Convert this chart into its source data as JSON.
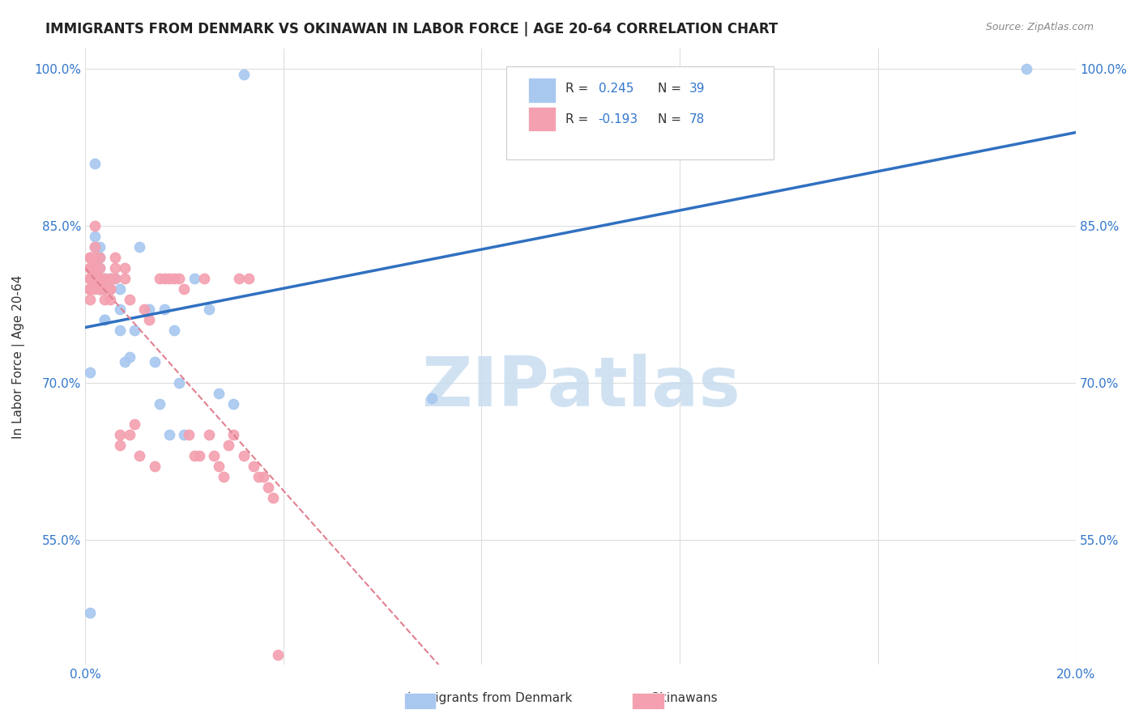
{
  "title": "IMMIGRANTS FROM DENMARK VS OKINAWAN IN LABOR FORCE | AGE 20-64 CORRELATION CHART",
  "source": "Source: ZipAtlas.com",
  "xlabel": "",
  "ylabel": "In Labor Force | Age 20-64",
  "xlim": [
    0.0,
    0.2
  ],
  "ylim": [
    0.43,
    1.02
  ],
  "yticks": [
    0.55,
    0.7,
    0.85,
    1.0
  ],
  "ytick_labels": [
    "55.0%",
    "70.0%",
    "85.0%",
    "100.0%"
  ],
  "xticks": [
    0.0,
    0.04,
    0.08,
    0.12,
    0.16,
    0.2
  ],
  "xtick_labels": [
    "0.0%",
    "",
    "",
    "",
    "",
    "20.0%"
  ],
  "denmark_R": 0.245,
  "denmark_N": 39,
  "okinawa_R": -0.193,
  "okinawa_N": 78,
  "denmark_color": "#a8c8f0",
  "okinawa_color": "#f4a0b0",
  "denmark_line_color": "#3070c0",
  "okinawa_line_color": "#e08090",
  "background_color": "#ffffff",
  "grid_color": "#dddddd",
  "watermark": "ZIPatlas",
  "watermark_color": "#c8ddf0",
  "legend_R_color": "#333333",
  "legend_N_color": "#3377cc",
  "denmark_x": [
    0.001,
    0.001,
    0.002,
    0.002,
    0.002,
    0.002,
    0.003,
    0.003,
    0.003,
    0.003,
    0.004,
    0.004,
    0.004,
    0.004,
    0.005,
    0.005,
    0.006,
    0.007,
    0.007,
    0.007,
    0.008,
    0.009,
    0.01,
    0.011,
    0.013,
    0.014,
    0.015,
    0.016,
    0.017,
    0.018,
    0.019,
    0.02,
    0.022,
    0.025,
    0.027,
    0.03,
    0.032,
    0.07,
    0.19
  ],
  "denmark_y": [
    0.48,
    0.71,
    0.795,
    0.83,
    0.84,
    0.91,
    0.81,
    0.82,
    0.83,
    0.79,
    0.79,
    0.8,
    0.76,
    0.76,
    0.79,
    0.8,
    0.8,
    0.75,
    0.77,
    0.79,
    0.72,
    0.725,
    0.75,
    0.83,
    0.77,
    0.72,
    0.68,
    0.77,
    0.65,
    0.75,
    0.7,
    0.65,
    0.8,
    0.77,
    0.69,
    0.68,
    0.995,
    0.685,
    1.0
  ],
  "okinawa_x": [
    0.001,
    0.001,
    0.001,
    0.001,
    0.001,
    0.001,
    0.001,
    0.001,
    0.001,
    0.001,
    0.001,
    0.001,
    0.001,
    0.001,
    0.001,
    0.001,
    0.002,
    0.002,
    0.002,
    0.002,
    0.002,
    0.002,
    0.002,
    0.002,
    0.003,
    0.003,
    0.003,
    0.003,
    0.003,
    0.003,
    0.003,
    0.004,
    0.004,
    0.004,
    0.004,
    0.005,
    0.005,
    0.005,
    0.005,
    0.006,
    0.006,
    0.006,
    0.007,
    0.007,
    0.008,
    0.008,
    0.009,
    0.009,
    0.01,
    0.011,
    0.012,
    0.013,
    0.014,
    0.015,
    0.016,
    0.017,
    0.018,
    0.019,
    0.02,
    0.021,
    0.022,
    0.023,
    0.024,
    0.025,
    0.026,
    0.027,
    0.028,
    0.029,
    0.03,
    0.031,
    0.032,
    0.033,
    0.034,
    0.035,
    0.036,
    0.037,
    0.038,
    0.039
  ],
  "okinawa_y": [
    0.79,
    0.8,
    0.79,
    0.81,
    0.82,
    0.8,
    0.79,
    0.81,
    0.8,
    0.79,
    0.79,
    0.81,
    0.78,
    0.79,
    0.8,
    0.82,
    0.8,
    0.79,
    0.81,
    0.82,
    0.8,
    0.81,
    0.83,
    0.85,
    0.82,
    0.79,
    0.79,
    0.8,
    0.81,
    0.79,
    0.8,
    0.78,
    0.79,
    0.79,
    0.8,
    0.79,
    0.8,
    0.79,
    0.78,
    0.81,
    0.82,
    0.8,
    0.64,
    0.65,
    0.8,
    0.81,
    0.78,
    0.65,
    0.66,
    0.63,
    0.77,
    0.76,
    0.62,
    0.8,
    0.8,
    0.8,
    0.8,
    0.8,
    0.79,
    0.65,
    0.63,
    0.63,
    0.8,
    0.65,
    0.63,
    0.62,
    0.61,
    0.64,
    0.65,
    0.8,
    0.63,
    0.8,
    0.62,
    0.61,
    0.61,
    0.6,
    0.59,
    0.44
  ]
}
